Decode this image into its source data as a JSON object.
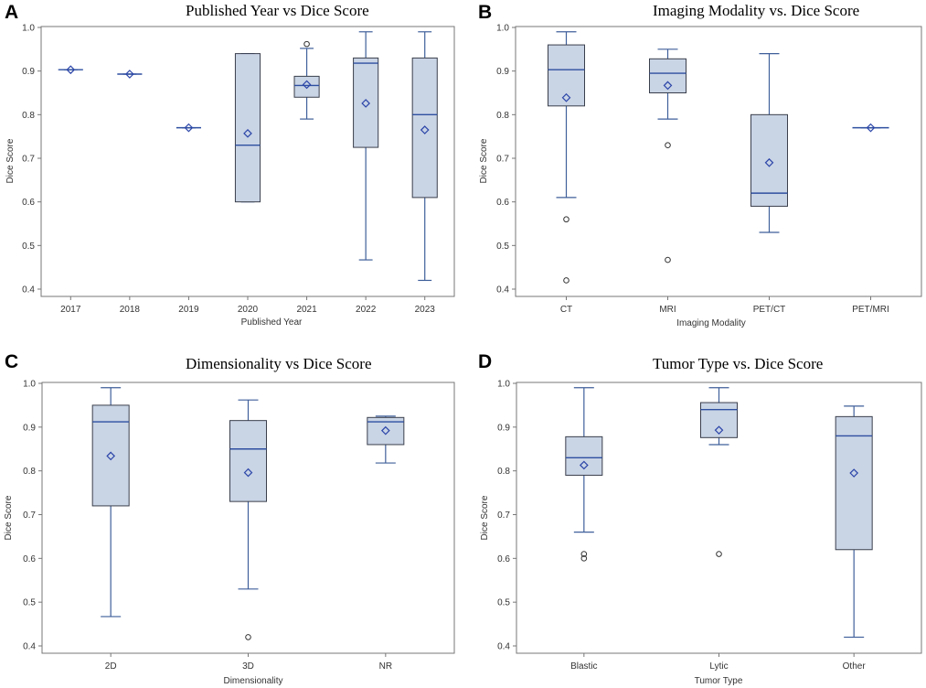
{
  "chart_data": [
    {
      "type": "box",
      "panel_label": "A",
      "title": "Published Year vs Dice Score",
      "xlabel": "Published Year",
      "ylabel": "Dice Score",
      "ylim": [
        0.4,
        1.0
      ],
      "yticks": [
        0.4,
        0.5,
        0.6,
        0.7,
        0.8,
        0.9,
        1.0
      ],
      "ytick_labels": [
        "0.4",
        "0.5",
        "0.6",
        "0.7",
        "0.8",
        "0.9",
        "1.0"
      ],
      "categories": [
        "2017",
        "2018",
        "2019",
        "2020",
        "2021",
        "2022",
        "2023"
      ],
      "boxes": [
        {
          "category": "2017",
          "min": 0.903,
          "q1": 0.903,
          "median": 0.903,
          "q3": 0.903,
          "max": 0.903,
          "mean": 0.903,
          "outliers": []
        },
        {
          "category": "2018",
          "min": 0.893,
          "q1": 0.893,
          "median": 0.893,
          "q3": 0.893,
          "max": 0.893,
          "mean": 0.893,
          "outliers": []
        },
        {
          "category": "2019",
          "min": 0.77,
          "q1": 0.77,
          "median": 0.77,
          "q3": 0.77,
          "max": 0.77,
          "mean": 0.77,
          "outliers": []
        },
        {
          "category": "2020",
          "min": 0.6,
          "q1": 0.6,
          "median": 0.73,
          "q3": 0.94,
          "max": 0.94,
          "mean": 0.757,
          "outliers": []
        },
        {
          "category": "2021",
          "min": 0.79,
          "q1": 0.84,
          "median": 0.867,
          "q3": 0.888,
          "max": 0.952,
          "mean": 0.869,
          "outliers": [
            0.962
          ]
        },
        {
          "category": "2022",
          "min": 0.467,
          "q1": 0.725,
          "median": 0.918,
          "q3": 0.93,
          "max": 0.99,
          "mean": 0.826,
          "outliers": []
        },
        {
          "category": "2023",
          "min": 0.42,
          "q1": 0.61,
          "median": 0.8,
          "q3": 0.93,
          "max": 0.99,
          "mean": 0.765,
          "outliers": []
        }
      ]
    },
    {
      "type": "box",
      "panel_label": "B",
      "title": "Imaging Modality vs. Dice Score",
      "xlabel": "Imaging Modality",
      "ylabel": "Dice Score",
      "ylim": [
        0.4,
        1.0
      ],
      "yticks": [
        0.4,
        0.5,
        0.6,
        0.7,
        0.8,
        0.9,
        1.0
      ],
      "ytick_labels": [
        "0.4",
        "0.5",
        "0.6",
        "0.7",
        "0.8",
        "0.9",
        "1.0"
      ],
      "categories": [
        "CT",
        "MRI",
        "PET/CT",
        "PET/MRI"
      ],
      "boxes": [
        {
          "category": "CT",
          "min": 0.61,
          "q1": 0.82,
          "median": 0.903,
          "q3": 0.96,
          "max": 0.99,
          "mean": 0.839,
          "outliers": [
            0.56,
            0.42
          ]
        },
        {
          "category": "MRI",
          "min": 0.79,
          "q1": 0.85,
          "median": 0.895,
          "q3": 0.928,
          "max": 0.95,
          "mean": 0.867,
          "outliers": [
            0.73,
            0.467
          ]
        },
        {
          "category": "PET/CT",
          "min": 0.53,
          "q1": 0.59,
          "median": 0.62,
          "q3": 0.8,
          "max": 0.94,
          "mean": 0.69,
          "outliers": []
        },
        {
          "category": "PET/MRI",
          "min": 0.77,
          "q1": 0.77,
          "median": 0.77,
          "q3": 0.77,
          "max": 0.77,
          "mean": 0.77,
          "outliers": []
        }
      ]
    },
    {
      "type": "box",
      "panel_label": "C",
      "title": "Dimensionality vs Dice Score",
      "xlabel": "Dimensionality",
      "ylabel": "Dice Score",
      "ylim": [
        0.4,
        1.0
      ],
      "yticks": [
        0.4,
        0.5,
        0.6,
        0.7,
        0.8,
        0.9,
        1.0
      ],
      "ytick_labels": [
        "0.4",
        "0.5",
        "0.6",
        "0.7",
        "0.8",
        "0.9",
        "1.0"
      ],
      "categories": [
        "2D",
        "3D",
        "NR"
      ],
      "boxes": [
        {
          "category": "2D",
          "min": 0.467,
          "q1": 0.72,
          "median": 0.912,
          "q3": 0.95,
          "max": 0.99,
          "mean": 0.834,
          "outliers": []
        },
        {
          "category": "3D",
          "min": 0.53,
          "q1": 0.73,
          "median": 0.85,
          "q3": 0.915,
          "max": 0.962,
          "mean": 0.796,
          "outliers": [
            0.42
          ]
        },
        {
          "category": "NR",
          "min": 0.818,
          "q1": 0.86,
          "median": 0.912,
          "q3": 0.922,
          "max": 0.925,
          "mean": 0.892,
          "outliers": []
        }
      ]
    },
    {
      "type": "box",
      "panel_label": "D",
      "title": "Tumor Type vs. Dice Score",
      "xlabel": "Tumor Type",
      "ylabel": "Dice Score",
      "ylim": [
        0.4,
        1.0
      ],
      "yticks": [
        0.4,
        0.5,
        0.6,
        0.7,
        0.8,
        0.9,
        1.0
      ],
      "ytick_labels": [
        "0.4",
        "0.5",
        "0.6",
        "0.7",
        "0.8",
        "0.9",
        "1.0"
      ],
      "categories": [
        "Blastic",
        "Lytic",
        "Other"
      ],
      "boxes": [
        {
          "category": "Blastic",
          "min": 0.66,
          "q1": 0.79,
          "median": 0.83,
          "q3": 0.878,
          "max": 0.99,
          "mean": 0.813,
          "outliers": [
            0.61,
            0.6
          ]
        },
        {
          "category": "Lytic",
          "min": 0.86,
          "q1": 0.876,
          "median": 0.94,
          "q3": 0.956,
          "max": 0.99,
          "mean": 0.893,
          "outliers": [
            0.61
          ]
        },
        {
          "category": "Other",
          "min": 0.42,
          "q1": 0.62,
          "median": 0.88,
          "q3": 0.924,
          "max": 0.948,
          "mean": 0.795,
          "outliers": []
        }
      ]
    }
  ],
  "colors": {
    "box_fill": "#c9d4e5",
    "box_edge": "#3a3f4c",
    "whisker": "#3f5f9a",
    "median": "#2e4fa0",
    "mean_marker": "#2b45a8",
    "outlier": "#333333",
    "frame": "#777777"
  }
}
